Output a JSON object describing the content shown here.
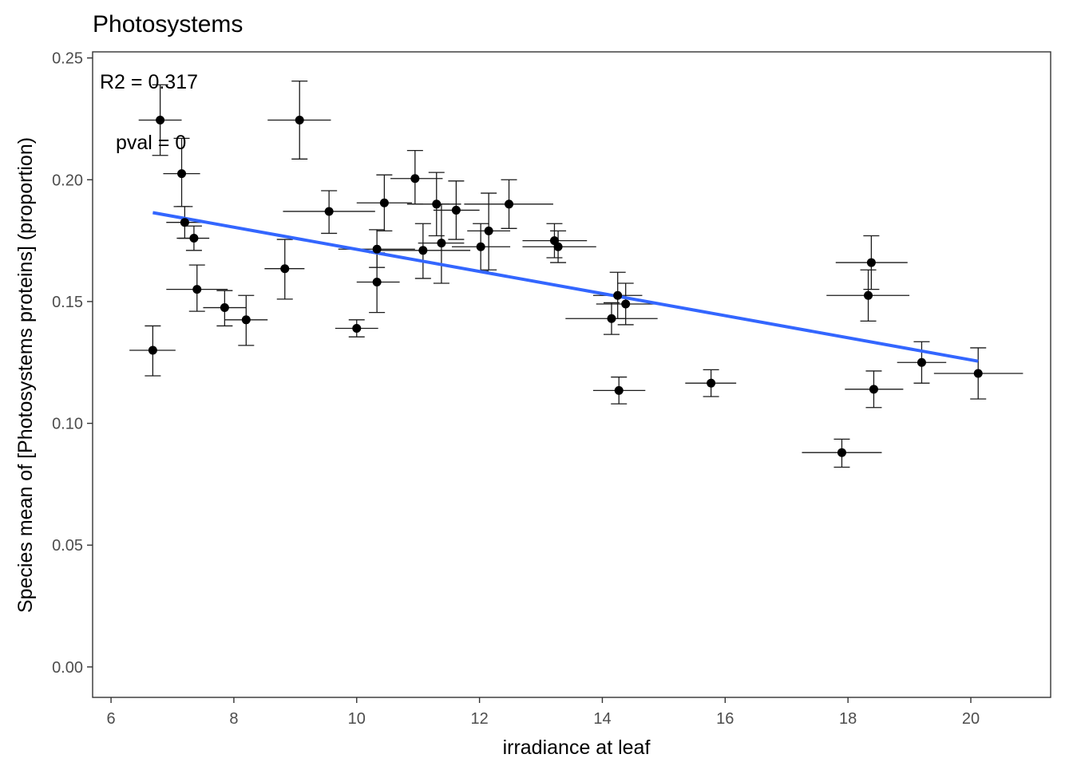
{
  "chart_data": {
    "type": "scatter",
    "title": "Photosystems",
    "xlabel": "irradiance at leaf",
    "ylabel": "Species mean of [Photosystems proteins] (proportion)",
    "xlim": [
      5.7,
      21.3
    ],
    "ylim": [
      -0.0125,
      0.2525
    ],
    "xticks": [
      6,
      8,
      10,
      12,
      14,
      16,
      18,
      20
    ],
    "yticks": [
      0.0,
      0.05,
      0.1,
      0.15,
      0.2,
      0.25
    ],
    "ytick_labels": [
      "0.00",
      "0.05",
      "0.10",
      "0.15",
      "0.20",
      "0.25"
    ],
    "grid": false,
    "annotations": [
      "R2 = 0.317",
      "pval = 0"
    ],
    "fit_line": {
      "color": "#3366ff",
      "x": [
        6.68,
        20.12
      ],
      "y": [
        0.1865,
        0.1255
      ]
    },
    "point_color": "#000000",
    "points": [
      {
        "x": 6.8,
        "y": 0.2245,
        "x_lo": 6.45,
        "x_hi": 7.15,
        "y_lo": 0.21,
        "y_hi": 0.239
      },
      {
        "x": 7.15,
        "y": 0.2025,
        "x_lo": 6.85,
        "x_hi": 7.45,
        "y_lo": 0.189,
        "y_hi": 0.217
      },
      {
        "x": 7.2,
        "y": 0.1825,
        "x_lo": 6.9,
        "x_hi": 7.5,
        "y_lo": 0.176,
        "y_hi": 0.189
      },
      {
        "x": 7.35,
        "y": 0.176,
        "x_lo": 7.1,
        "x_hi": 7.6,
        "y_lo": 0.171,
        "y_hi": 0.181
      },
      {
        "x": 7.4,
        "y": 0.155,
        "x_lo": 6.9,
        "x_hi": 7.9,
        "y_lo": 0.146,
        "y_hi": 0.165
      },
      {
        "x": 6.68,
        "y": 0.13,
        "x_lo": 6.3,
        "x_hi": 7.05,
        "y_lo": 0.1195,
        "y_hi": 0.14
      },
      {
        "x": 7.85,
        "y": 0.1475,
        "x_lo": 7.5,
        "x_hi": 8.2,
        "y_lo": 0.14,
        "y_hi": 0.1545
      },
      {
        "x": 8.2,
        "y": 0.1425,
        "x_lo": 7.85,
        "x_hi": 8.55,
        "y_lo": 0.132,
        "y_hi": 0.1525
      },
      {
        "x": 9.07,
        "y": 0.2245,
        "x_lo": 8.55,
        "x_hi": 9.58,
        "y_lo": 0.2085,
        "y_hi": 0.2405
      },
      {
        "x": 8.83,
        "y": 0.1635,
        "x_lo": 8.5,
        "x_hi": 9.15,
        "y_lo": 0.151,
        "y_hi": 0.1755
      },
      {
        "x": 9.55,
        "y": 0.187,
        "x_lo": 8.8,
        "x_hi": 10.3,
        "y_lo": 0.178,
        "y_hi": 0.1955
      },
      {
        "x": 10.0,
        "y": 0.139,
        "x_lo": 9.65,
        "x_hi": 10.35,
        "y_lo": 0.1355,
        "y_hi": 0.1425
      },
      {
        "x": 10.33,
        "y": 0.1715,
        "x_lo": 9.7,
        "x_hi": 10.95,
        "y_lo": 0.164,
        "y_hi": 0.1795
      },
      {
        "x": 10.33,
        "y": 0.158,
        "x_lo": 10.0,
        "x_hi": 10.7,
        "y_lo": 0.1455,
        "y_hi": 0.17
      },
      {
        "x": 10.45,
        "y": 0.1905,
        "x_lo": 10.0,
        "x_hi": 10.9,
        "y_lo": 0.179,
        "y_hi": 0.202
      },
      {
        "x": 10.95,
        "y": 0.2005,
        "x_lo": 10.55,
        "x_hi": 11.4,
        "y_lo": 0.19,
        "y_hi": 0.212
      },
      {
        "x": 11.08,
        "y": 0.171,
        "x_lo": 10.3,
        "x_hi": 11.85,
        "y_lo": 0.1595,
        "y_hi": 0.182
      },
      {
        "x": 11.3,
        "y": 0.19,
        "x_lo": 10.9,
        "x_hi": 11.7,
        "y_lo": 0.177,
        "y_hi": 0.203
      },
      {
        "x": 11.38,
        "y": 0.174,
        "x_lo": 11.0,
        "x_hi": 11.75,
        "y_lo": 0.1575,
        "y_hi": 0.19
      },
      {
        "x": 11.62,
        "y": 0.1875,
        "x_lo": 11.25,
        "x_hi": 12.0,
        "y_lo": 0.1755,
        "y_hi": 0.1995
      },
      {
        "x": 12.02,
        "y": 0.1725,
        "x_lo": 11.55,
        "x_hi": 12.5,
        "y_lo": 0.1625,
        "y_hi": 0.182
      },
      {
        "x": 12.15,
        "y": 0.179,
        "x_lo": 11.8,
        "x_hi": 12.5,
        "y_lo": 0.163,
        "y_hi": 0.1945
      },
      {
        "x": 12.48,
        "y": 0.19,
        "x_lo": 11.75,
        "x_hi": 13.2,
        "y_lo": 0.18,
        "y_hi": 0.2
      },
      {
        "x": 13.22,
        "y": 0.175,
        "x_lo": 12.7,
        "x_hi": 13.75,
        "y_lo": 0.168,
        "y_hi": 0.182
      },
      {
        "x": 13.28,
        "y": 0.1725,
        "x_lo": 12.7,
        "x_hi": 13.9,
        "y_lo": 0.166,
        "y_hi": 0.179
      },
      {
        "x": 14.25,
        "y": 0.1525,
        "x_lo": 13.85,
        "x_hi": 14.65,
        "y_lo": 0.143,
        "y_hi": 0.162
      },
      {
        "x": 14.38,
        "y": 0.149,
        "x_lo": 13.9,
        "x_hi": 14.85,
        "y_lo": 0.1405,
        "y_hi": 0.1575
      },
      {
        "x": 14.15,
        "y": 0.143,
        "x_lo": 13.4,
        "x_hi": 14.9,
        "y_lo": 0.1365,
        "y_hi": 0.1495
      },
      {
        "x": 14.27,
        "y": 0.1135,
        "x_lo": 13.85,
        "x_hi": 14.7,
        "y_lo": 0.108,
        "y_hi": 0.119
      },
      {
        "x": 15.77,
        "y": 0.1165,
        "x_lo": 15.35,
        "x_hi": 16.18,
        "y_lo": 0.111,
        "y_hi": 0.122
      },
      {
        "x": 17.9,
        "y": 0.088,
        "x_lo": 17.25,
        "x_hi": 18.55,
        "y_lo": 0.082,
        "y_hi": 0.0935
      },
      {
        "x": 18.38,
        "y": 0.166,
        "x_lo": 17.8,
        "x_hi": 18.97,
        "y_lo": 0.155,
        "y_hi": 0.177
      },
      {
        "x": 18.33,
        "y": 0.1525,
        "x_lo": 17.65,
        "x_hi": 19.0,
        "y_lo": 0.142,
        "y_hi": 0.163
      },
      {
        "x": 18.42,
        "y": 0.114,
        "x_lo": 17.95,
        "x_hi": 18.9,
        "y_lo": 0.1065,
        "y_hi": 0.1215
      },
      {
        "x": 19.2,
        "y": 0.125,
        "x_lo": 18.8,
        "x_hi": 19.6,
        "y_lo": 0.1165,
        "y_hi": 0.1335
      },
      {
        "x": 20.12,
        "y": 0.1205,
        "x_lo": 19.4,
        "x_hi": 20.85,
        "y_lo": 0.11,
        "y_hi": 0.131
      }
    ]
  }
}
